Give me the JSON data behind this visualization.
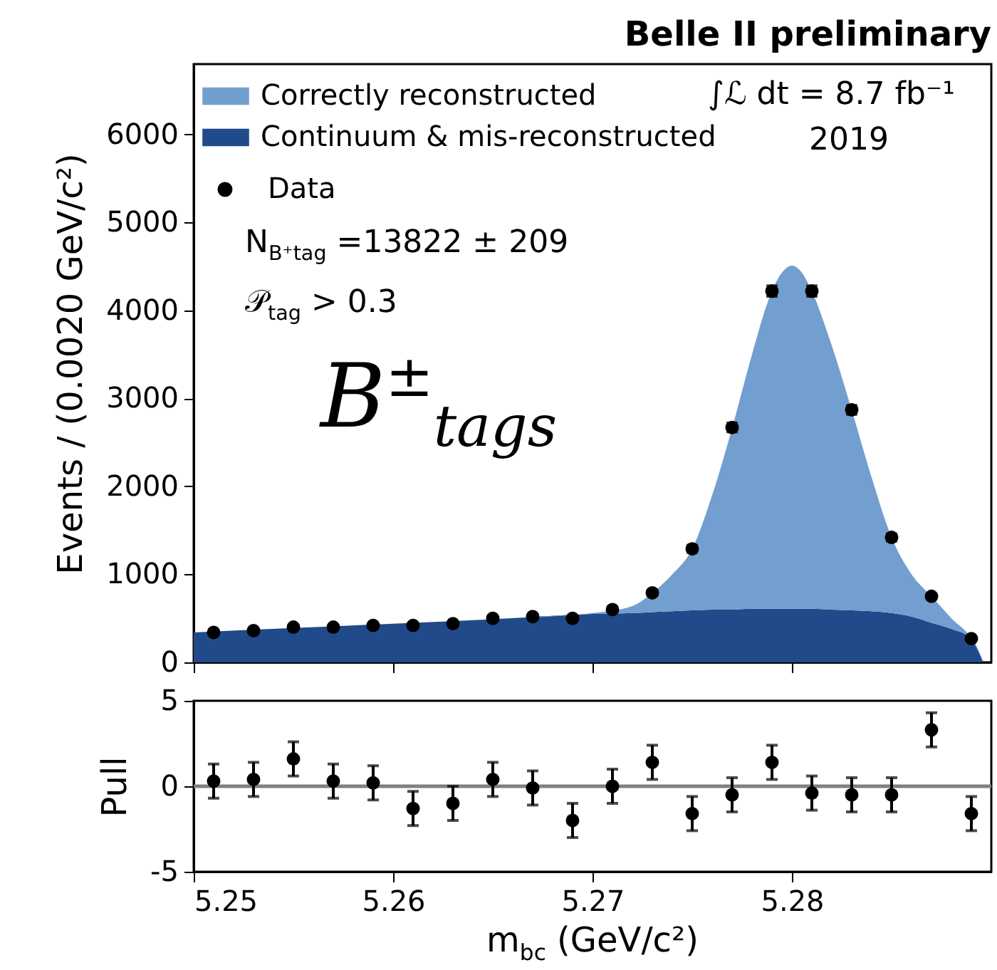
{
  "chart_data": [
    {
      "type": "area",
      "title": "Belle II preliminary",
      "ylabel": "Events / (0.0020 GeV/c²)",
      "legend": "top left",
      "tick_labels": "y",
      "stacked": true,
      "xlim": [
        5.25,
        5.29
      ],
      "ylim": [
        0,
        6800
      ],
      "xticks": [
        5.25,
        5.26,
        5.27,
        5.28
      ],
      "yticks": [
        0,
        1000,
        2000,
        3000,
        4000,
        5000,
        6000
      ],
      "annotations": [
        "∫ℒ dt = 8.7 fb⁻¹",
        "2019",
        "N$_{B⁺tag}$ =13822 ± 209",
        "𝒫$_{tag}$ > 0.3",
        "B$^{±}$$_{tags}$"
      ],
      "series": [
        {
          "name": "Continuum & mis-reconstructed",
          "type": "area",
          "color": "#214a8a",
          "x": [
            5.25,
            5.255,
            5.26,
            5.265,
            5.27,
            5.272,
            5.273,
            5.274,
            5.275,
            5.276,
            5.277,
            5.278,
            5.279,
            5.2795,
            5.28,
            5.2805,
            5.281,
            5.282,
            5.283,
            5.284,
            5.285,
            5.286,
            5.287,
            5.288,
            5.289,
            5.2896
          ],
          "values": [
            340,
            390,
            440,
            490,
            550,
            560,
            570,
            580,
            590,
            600,
            600,
            610,
            610,
            610,
            610,
            610,
            610,
            600,
            590,
            580,
            560,
            520,
            450,
            380,
            270,
            0
          ]
        },
        {
          "name": "Correctly reconstructed",
          "type": "area",
          "color": "#729fcf",
          "x": [
            5.25,
            5.255,
            5.26,
            5.265,
            5.27,
            5.272,
            5.273,
            5.274,
            5.275,
            5.276,
            5.277,
            5.278,
            5.279,
            5.2795,
            5.28,
            5.2805,
            5.281,
            5.282,
            5.283,
            5.284,
            5.285,
            5.286,
            5.287,
            5.288,
            5.289,
            5.2896
          ],
          "values": [
            0,
            0,
            0,
            0,
            10,
            80,
            220,
            420,
            700,
            1300,
            2060,
            2890,
            3610,
            3820,
            3900,
            3820,
            3610,
            3000,
            2280,
            1520,
            860,
            480,
            300,
            120,
            0,
            0
          ]
        },
        {
          "name": "Data",
          "type": "scatter",
          "marker": "circle",
          "color": "#000000",
          "x": [
            5.251,
            5.253,
            5.255,
            5.257,
            5.259,
            5.261,
            5.263,
            5.265,
            5.267,
            5.269,
            5.271,
            5.273,
            5.275,
            5.277,
            5.279,
            5.281,
            5.283,
            5.285,
            5.287,
            5.289
          ],
          "values": [
            340,
            360,
            400,
            400,
            420,
            420,
            440,
            500,
            520,
            500,
            600,
            790,
            1290,
            2670,
            4220,
            4220,
            2870,
            1420,
            750,
            270
          ],
          "errors": [
            20,
            20,
            20,
            20,
            20,
            20,
            20,
            20,
            20,
            20,
            20,
            30,
            40,
            50,
            60,
            60,
            50,
            40,
            30,
            20
          ]
        }
      ]
    },
    {
      "type": "scatter",
      "xlabel": "m$_{bc}$ (GeV/c²)",
      "ylabel": "Pull",
      "marker": "circle",
      "xlim": [
        5.25,
        5.29
      ],
      "ylim": [
        -5,
        5
      ],
      "xticks": [
        5.25,
        5.26,
        5.27,
        5.28
      ],
      "yticks": [
        -5,
        0,
        5
      ],
      "ref_lines": [
        {
          "axis": "y",
          "value": 0,
          "color": "#808080"
        }
      ],
      "series": [
        {
          "color": "#000000",
          "x": [
            5.251,
            5.253,
            5.255,
            5.257,
            5.259,
            5.261,
            5.263,
            5.265,
            5.267,
            5.269,
            5.271,
            5.273,
            5.275,
            5.277,
            5.279,
            5.281,
            5.283,
            5.285,
            5.287,
            5.289
          ],
          "values": [
            0.3,
            0.4,
            1.6,
            0.3,
            0.2,
            -1.3,
            -1.0,
            0.4,
            -0.1,
            -2.0,
            0.0,
            1.4,
            -1.6,
            -0.5,
            1.4,
            -0.4,
            -0.5,
            -0.5,
            3.3,
            -1.6
          ],
          "errors": [
            1,
            1,
            1,
            1,
            1,
            1,
            1,
            1,
            1,
            1,
            1,
            1,
            1,
            1,
            1,
            1,
            1,
            1,
            1,
            1
          ]
        }
      ]
    }
  ]
}
